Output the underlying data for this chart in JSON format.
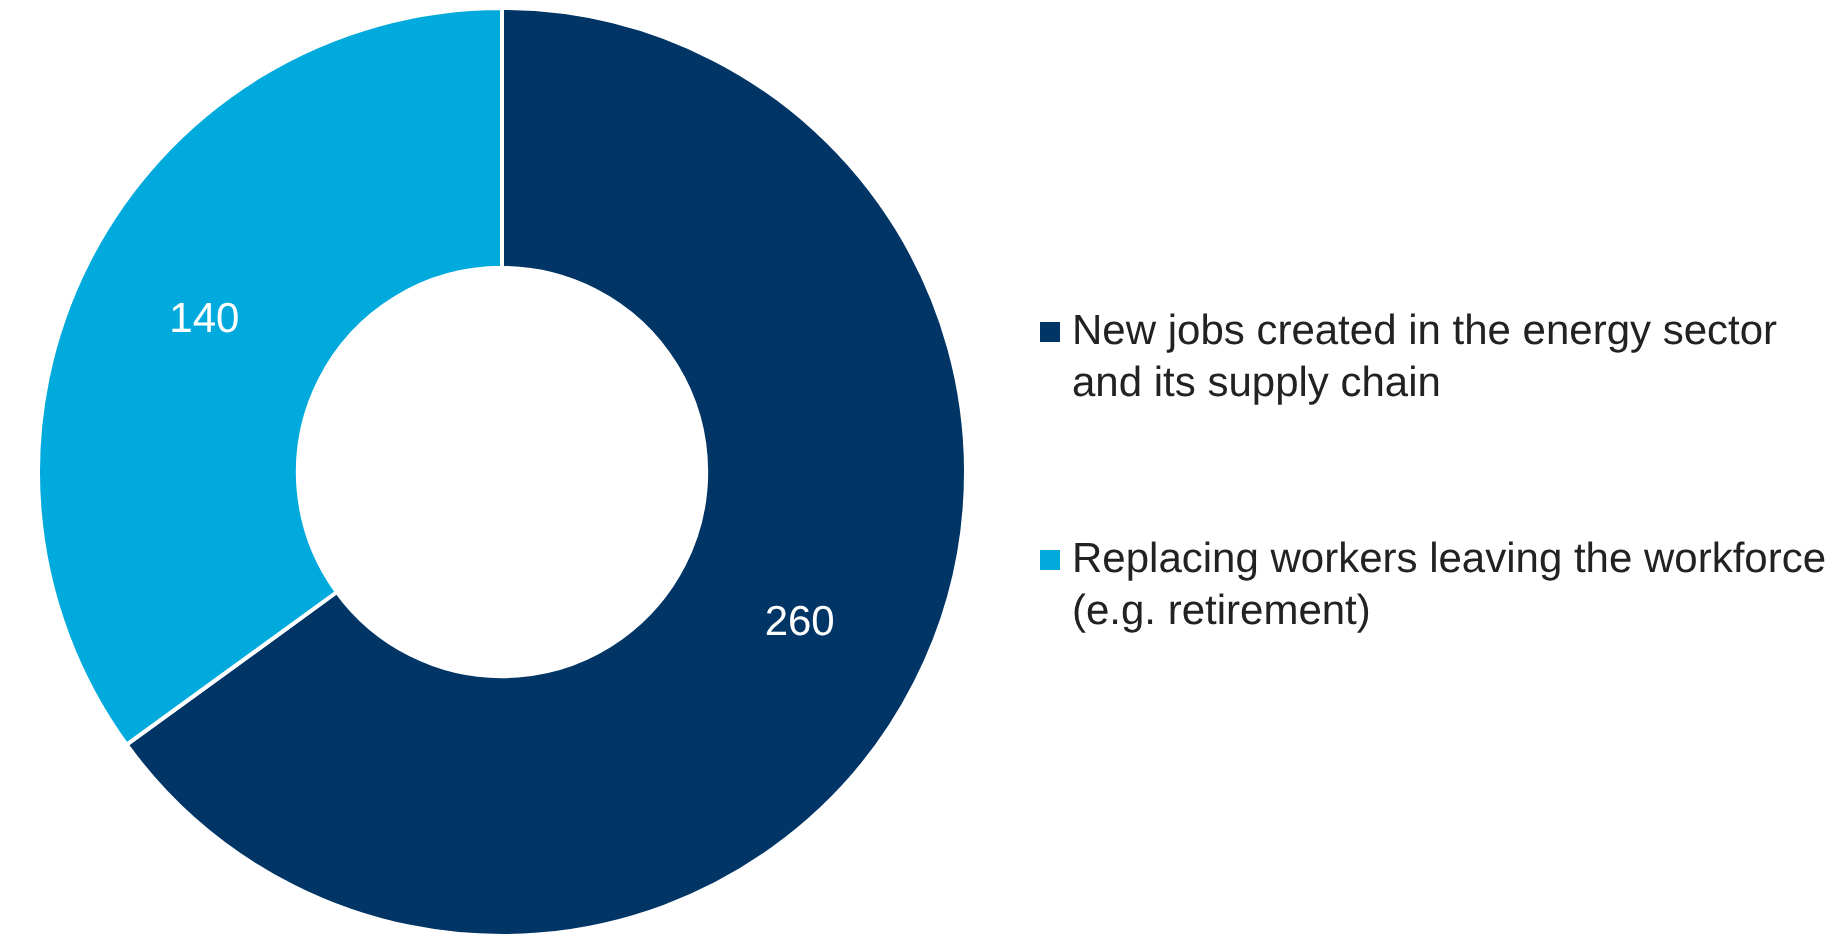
{
  "chart_data": {
    "type": "donut",
    "categories": [
      "New jobs created in the energy sector and its supply chain",
      "Replacing workers leaving the workforce (e.g. retirement)"
    ],
    "values": [
      260,
      140
    ],
    "colors": [
      "#003566",
      "#00aadd"
    ],
    "data_labels": true,
    "legend": "right"
  }
}
